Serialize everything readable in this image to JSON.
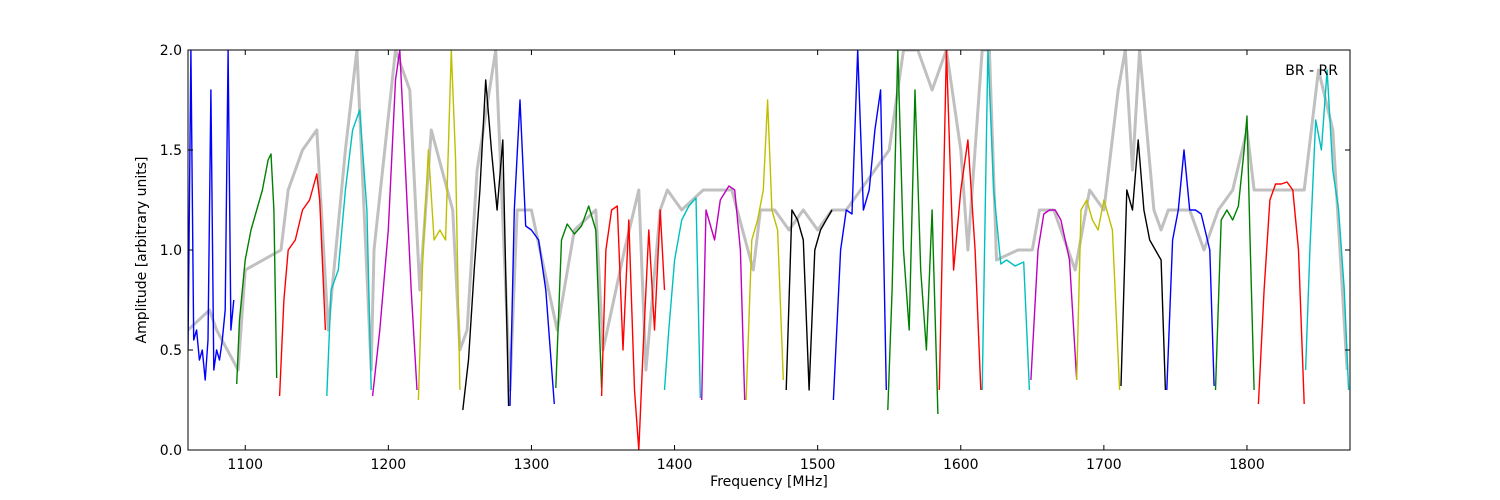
{
  "chart_data": {
    "type": "line",
    "xlabel": "Frequency [MHz]",
    "ylabel": "Amplitude [arbitrary units]",
    "annotation": "BR - RR",
    "xlim": [
      1060,
      1872
    ],
    "ylim": [
      0.0,
      2.0
    ],
    "xticks": [
      1100,
      1200,
      1300,
      1400,
      1500,
      1600,
      1700,
      1800
    ],
    "yticks": [
      0.0,
      0.5,
      1.0,
      1.5,
      2.0
    ],
    "xtick_labels": [
      "1100",
      "1200",
      "1300",
      "1400",
      "1500",
      "1600",
      "1700",
      "1800"
    ],
    "ytick_labels": [
      "0.0",
      "0.5",
      "1.0",
      "1.5",
      "2.0"
    ],
    "grid": false,
    "background_trace": {
      "color": "#c0c0c0",
      "x": [
        1060,
        1075,
        1080,
        1095,
        1100,
        1125,
        1130,
        1140,
        1150,
        1158,
        1170,
        1178,
        1188,
        1190,
        1205,
        1215,
        1222,
        1230,
        1245,
        1250,
        1255,
        1262,
        1275,
        1285,
        1290,
        1300,
        1318,
        1330,
        1345,
        1350,
        1365,
        1375,
        1380,
        1390,
        1395,
        1405,
        1420,
        1440,
        1455,
        1460,
        1470,
        1480,
        1490,
        1500,
        1510,
        1520,
        1530,
        1540,
        1550,
        1560,
        1570,
        1580,
        1590,
        1600,
        1605,
        1615,
        1620,
        1625,
        1640,
        1650,
        1655,
        1665,
        1680,
        1690,
        1700,
        1710,
        1715,
        1720,
        1725,
        1735,
        1740,
        1745,
        1760,
        1770,
        1780,
        1790,
        1800,
        1805,
        1825,
        1840,
        1850,
        1860,
        1870
      ],
      "y": [
        0.6,
        0.7,
        0.6,
        0.4,
        0.9,
        1.0,
        1.3,
        1.5,
        1.6,
        0.6,
        1.5,
        2.0,
        0.4,
        1.0,
        2.0,
        1.8,
        0.8,
        1.6,
        1.2,
        0.5,
        0.6,
        1.4,
        2.0,
        0.3,
        1.2,
        1.2,
        0.6,
        1.1,
        1.2,
        0.5,
        1.0,
        1.3,
        0.4,
        1.2,
        1.3,
        1.2,
        1.3,
        1.3,
        0.9,
        1.2,
        1.2,
        1.1,
        1.2,
        1.1,
        1.2,
        1.2,
        1.3,
        1.4,
        1.5,
        2.0,
        2.0,
        1.8,
        2.0,
        1.5,
        1.0,
        2.0,
        2.0,
        0.95,
        1.0,
        1.0,
        1.2,
        1.2,
        0.9,
        1.3,
        1.2,
        1.8,
        2.0,
        1.4,
        2.0,
        1.2,
        1.1,
        1.2,
        1.2,
        1.0,
        1.2,
        1.3,
        1.6,
        1.3,
        1.3,
        1.3,
        1.9,
        1.6,
        0.4
      ]
    },
    "series": [
      {
        "color": "#0000ff",
        "x": [
          1060,
          1062,
          1064,
          1066,
          1068,
          1070,
          1072,
          1074,
          1076,
          1078,
          1080,
          1082,
          1084,
          1086,
          1088,
          1090,
          1092
        ],
        "y": [
          0.5,
          2.0,
          0.55,
          0.6,
          0.45,
          0.5,
          0.35,
          0.55,
          1.8,
          0.4,
          0.5,
          0.45,
          0.55,
          0.7,
          2.0,
          0.6,
          0.75
        ]
      },
      {
        "color": "#008000",
        "x": [
          1094,
          1096,
          1100,
          1104,
          1108,
          1112,
          1116,
          1118,
          1120,
          1122
        ],
        "y": [
          0.33,
          0.65,
          0.95,
          1.1,
          1.2,
          1.3,
          1.45,
          1.48,
          1.2,
          0.36
        ]
      },
      {
        "color": "#ff0000",
        "x": [
          1124,
          1127,
          1130,
          1135,
          1140,
          1145,
          1150,
          1152,
          1156
        ],
        "y": [
          0.27,
          0.75,
          1.0,
          1.05,
          1.2,
          1.25,
          1.38,
          1.25,
          0.6
        ]
      },
      {
        "color": "#00bfbf",
        "x": [
          1157,
          1160,
          1165,
          1170,
          1175,
          1180,
          1185,
          1188
        ],
        "y": [
          0.27,
          0.8,
          0.9,
          1.3,
          1.6,
          1.7,
          1.2,
          0.3
        ]
      },
      {
        "color": "#bf00bf",
        "x": [
          1189,
          1194,
          1200,
          1205,
          1208,
          1212,
          1216,
          1220
        ],
        "y": [
          0.27,
          0.6,
          1.1,
          1.85,
          2.0,
          1.4,
          0.8,
          0.3
        ]
      },
      {
        "color": "#bfbf00",
        "x": [
          1221,
          1224,
          1228,
          1232,
          1236,
          1240,
          1244,
          1247,
          1250
        ],
        "y": [
          0.25,
          0.95,
          1.5,
          1.05,
          1.1,
          1.05,
          2.0,
          1.45,
          0.3
        ]
      },
      {
        "color": "#000000",
        "x": [
          1252,
          1256,
          1260,
          1264,
          1268,
          1272,
          1276,
          1280,
          1284
        ],
        "y": [
          0.2,
          0.45,
          0.9,
          1.3,
          1.85,
          1.5,
          1.2,
          1.55,
          0.22
        ]
      },
      {
        "color": "#0000ff",
        "x": [
          1285,
          1288,
          1292,
          1296,
          1300,
          1305,
          1310,
          1316
        ],
        "y": [
          0.22,
          1.2,
          1.75,
          1.12,
          1.1,
          1.05,
          0.8,
          0.23
        ]
      },
      {
        "color": "#008000",
        "x": [
          1317,
          1321,
          1325,
          1330,
          1335,
          1340,
          1345,
          1349
        ],
        "y": [
          0.31,
          1.05,
          1.13,
          1.08,
          1.12,
          1.22,
          1.1,
          0.31
        ]
      },
      {
        "color": "#ff0000",
        "x": [
          1349,
          1352,
          1356,
          1360,
          1364,
          1368,
          1372,
          1375,
          1378,
          1382,
          1386,
          1390,
          1393
        ],
        "y": [
          0.27,
          1.0,
          1.2,
          1.22,
          0.5,
          1.15,
          0.3,
          0.0,
          0.5,
          1.1,
          0.6,
          1.2,
          0.8
        ]
      },
      {
        "color": "#00bfbf",
        "x": [
          1393,
          1396,
          1400,
          1405,
          1410,
          1415,
          1418
        ],
        "y": [
          0.3,
          0.6,
          0.95,
          1.15,
          1.22,
          1.26,
          0.26
        ]
      },
      {
        "color": "#bf00bf",
        "x": [
          1419,
          1422,
          1428,
          1432,
          1438,
          1442,
          1446,
          1449
        ],
        "y": [
          0.25,
          1.2,
          1.05,
          1.25,
          1.32,
          1.3,
          1.0,
          0.25
        ]
      },
      {
        "color": "#bfbf00",
        "x": [
          1450,
          1454,
          1458,
          1462,
          1465,
          1468,
          1472,
          1476
        ],
        "y": [
          0.25,
          1.05,
          1.15,
          1.3,
          1.75,
          1.2,
          1.1,
          0.35
        ]
      },
      {
        "color": "#000000",
        "x": [
          1478,
          1482,
          1486,
          1490,
          1494,
          1498,
          1502,
          1506,
          1510
        ],
        "y": [
          0.3,
          1.2,
          1.15,
          1.05,
          0.3,
          1.0,
          1.1,
          1.15,
          1.2
        ]
      },
      {
        "color": "#0000ff",
        "x": [
          1511,
          1516,
          1520,
          1524,
          1528,
          1532,
          1536,
          1540,
          1544,
          1548
        ],
        "y": [
          0.25,
          1.0,
          1.2,
          1.18,
          2.0,
          1.2,
          1.3,
          1.6,
          1.8,
          0.3
        ]
      },
      {
        "color": "#008000",
        "x": [
          1549,
          1552,
          1556,
          1560,
          1564,
          1568,
          1572,
          1576,
          1580,
          1584
        ],
        "y": [
          0.2,
          0.8,
          2.0,
          1.0,
          0.6,
          1.8,
          0.9,
          0.5,
          1.2,
          0.18
        ]
      },
      {
        "color": "#ff0000",
        "x": [
          1585,
          1590,
          1595,
          1600,
          1605,
          1610,
          1614
        ],
        "y": [
          0.3,
          2.0,
          0.9,
          1.3,
          1.55,
          1.0,
          0.3
        ]
      },
      {
        "color": "#00bfbf",
        "x": [
          1615,
          1619,
          1623,
          1628,
          1632,
          1638,
          1644,
          1648
        ],
        "y": [
          0.3,
          2.0,
          1.3,
          0.93,
          0.95,
          0.92,
          0.94,
          0.3
        ]
      },
      {
        "color": "#bf00bf",
        "x": [
          1649,
          1654,
          1658,
          1662,
          1666,
          1670,
          1676,
          1681
        ],
        "y": [
          0.35,
          1.0,
          1.18,
          1.2,
          1.2,
          1.15,
          0.95,
          0.35
        ]
      },
      {
        "color": "#bfbf00",
        "x": [
          1681,
          1684,
          1688,
          1692,
          1696,
          1700,
          1706,
          1711
        ],
        "y": [
          0.35,
          1.2,
          1.25,
          1.15,
          1.1,
          1.25,
          1.1,
          0.3
        ]
      },
      {
        "color": "#000000",
        "x": [
          1712,
          1716,
          1720,
          1724,
          1728,
          1732,
          1736,
          1740,
          1743
        ],
        "y": [
          0.32,
          1.3,
          1.2,
          1.55,
          1.2,
          1.05,
          1.0,
          0.95,
          0.3
        ]
      },
      {
        "color": "#0000ff",
        "x": [
          1744,
          1748,
          1752,
          1756,
          1760,
          1764,
          1768,
          1774,
          1777
        ],
        "y": [
          0.3,
          1.05,
          1.2,
          1.5,
          1.2,
          1.2,
          1.18,
          1.0,
          0.32
        ]
      },
      {
        "color": "#008000",
        "x": [
          1778,
          1782,
          1786,
          1790,
          1794,
          1798,
          1800,
          1802,
          1805
        ],
        "y": [
          0.3,
          1.15,
          1.2,
          1.15,
          1.22,
          1.5,
          1.67,
          1.1,
          0.3
        ]
      },
      {
        "color": "#ff0000",
        "x": [
          1808,
          1812,
          1816,
          1820,
          1824,
          1828,
          1832,
          1836,
          1840
        ],
        "y": [
          0.23,
          0.8,
          1.25,
          1.33,
          1.33,
          1.34,
          1.3,
          1.0,
          0.23
        ]
      },
      {
        "color": "#00bfbf",
        "x": [
          1841,
          1844,
          1848,
          1852,
          1856,
          1860,
          1864,
          1868,
          1871
        ],
        "y": [
          0.4,
          1.0,
          1.65,
          1.5,
          1.9,
          1.4,
          1.2,
          0.8,
          0.3
        ]
      }
    ]
  }
}
